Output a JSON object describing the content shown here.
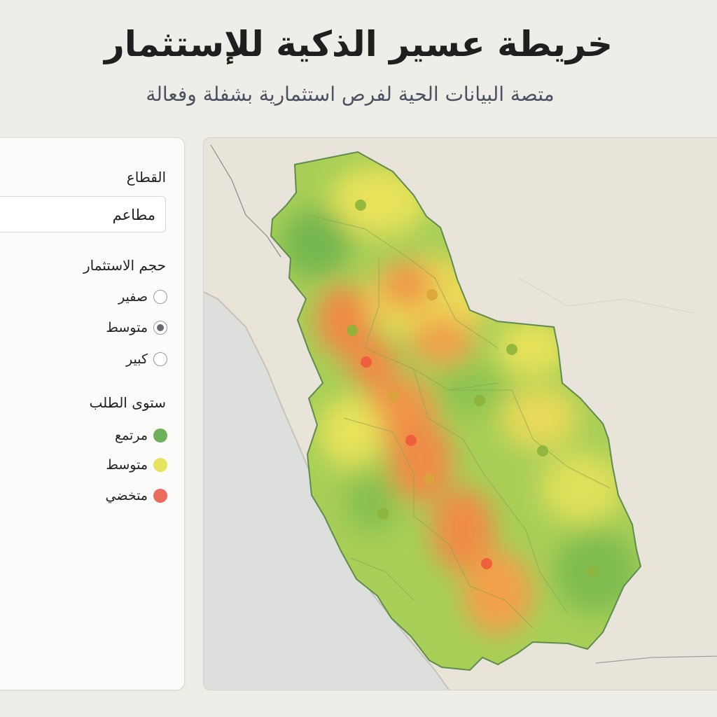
{
  "header": {
    "title": "خريطة عسير الذكية للإستثمار",
    "subtitle": "متصة البيانات الحية لفرص استثمارية بشفلة وفعالة"
  },
  "filters": {
    "sector_label": "القطاع",
    "sector_value": "مطاعم",
    "size_label": "حجم الاستثمار",
    "size_options": [
      {
        "label": "صفير",
        "selected": false
      },
      {
        "label": "متوسط",
        "selected": true
      },
      {
        "label": "كبير",
        "selected": false
      }
    ]
  },
  "legend": {
    "title": "ستوى الطلب",
    "items": [
      {
        "label": "مرتمع",
        "color": "#6fb05a"
      },
      {
        "label": "متوسط",
        "color": "#e6e25a"
      },
      {
        "label": "متخضي",
        "color": "#ec6a5e"
      }
    ]
  },
  "map": {
    "colors": {
      "sea": "#d9dcd8",
      "land": "#e8e2d6",
      "high": "#7cbb52",
      "medium": "#e9e055",
      "low": "#ef8c4a",
      "region_border": "#5f8a50",
      "marker_high": "#8db43a",
      "marker_medium": "#d9a53c",
      "marker_low": "#ee5a3c"
    },
    "markers": [
      {
        "level": "high"
      },
      {
        "level": "medium"
      },
      {
        "level": "high"
      },
      {
        "level": "low"
      },
      {
        "level": "high"
      },
      {
        "level": "medium"
      },
      {
        "level": "high"
      },
      {
        "level": "low"
      },
      {
        "level": "high"
      },
      {
        "level": "medium"
      },
      {
        "level": "high"
      },
      {
        "level": "low"
      },
      {
        "level": "high"
      }
    ]
  }
}
